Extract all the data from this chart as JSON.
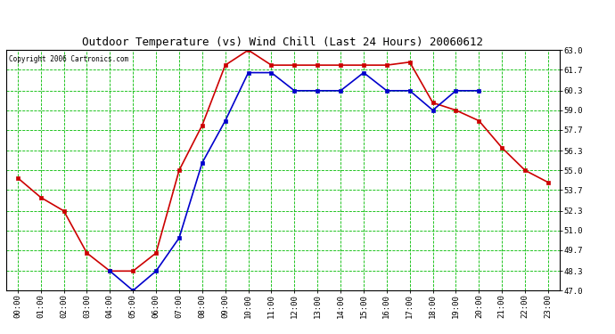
{
  "title": "Outdoor Temperature (vs) Wind Chill (Last 24 Hours) 20060612",
  "copyright": "Copyright 2006 Cartronics.com",
  "x_labels": [
    "00:00",
    "01:00",
    "02:00",
    "03:00",
    "04:00",
    "05:00",
    "06:00",
    "07:00",
    "08:00",
    "09:00",
    "10:00",
    "11:00",
    "12:00",
    "13:00",
    "14:00",
    "15:00",
    "16:00",
    "17:00",
    "18:00",
    "19:00",
    "20:00",
    "21:00",
    "22:00",
    "23:00"
  ],
  "temp_red": [
    54.5,
    53.2,
    52.3,
    49.5,
    48.3,
    48.3,
    49.5,
    55.0,
    58.0,
    62.0,
    63.0,
    62.0,
    62.0,
    62.0,
    62.0,
    62.0,
    62.0,
    62.2,
    59.5,
    59.0,
    58.3,
    56.5,
    55.0,
    54.2
  ],
  "wind_chill_blue": [
    null,
    null,
    null,
    null,
    48.3,
    47.0,
    48.3,
    50.5,
    55.5,
    58.3,
    61.5,
    61.5,
    60.3,
    60.3,
    60.3,
    61.5,
    60.3,
    60.3,
    59.0,
    60.3,
    60.3,
    null,
    null,
    null
  ],
  "ylim": [
    47.0,
    63.0
  ],
  "yticks": [
    47.0,
    48.3,
    49.7,
    51.0,
    52.3,
    53.7,
    55.0,
    56.3,
    57.7,
    59.0,
    60.3,
    61.7,
    63.0
  ],
  "bg_color": "#ffffff",
  "plot_bg_color": "#ffffff",
  "grid_color": "#00bb00",
  "red_color": "#cc0000",
  "blue_color": "#0000cc",
  "title_color": "#000000",
  "border_color": "#000000",
  "figsize": [
    6.9,
    3.75
  ],
  "dpi": 100
}
